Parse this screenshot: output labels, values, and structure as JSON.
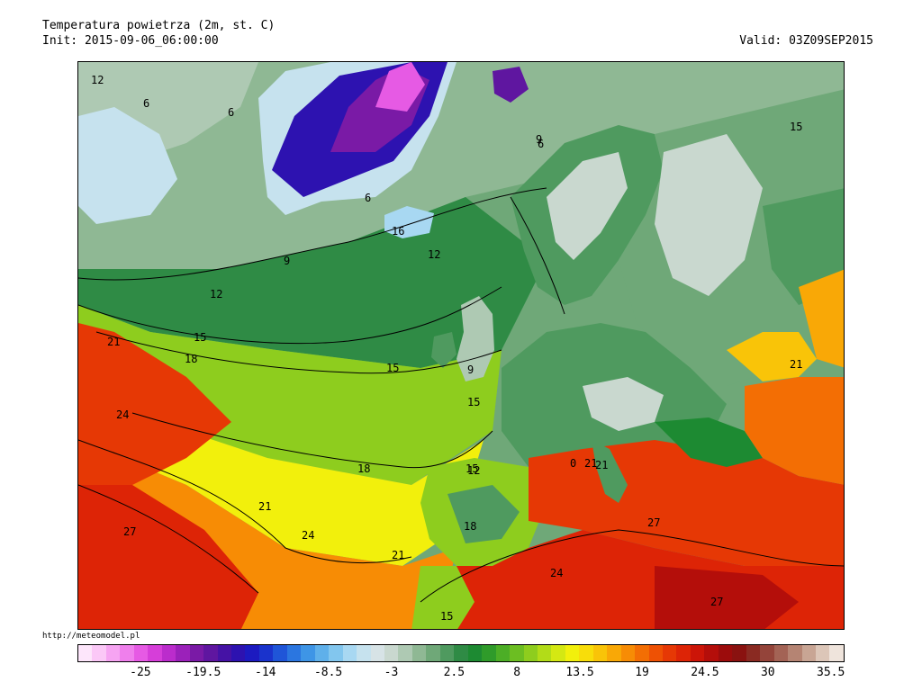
{
  "header": {
    "title": "Temperatura powietrza (2m, st. C)",
    "init": "Init: 2015-09-06_06:00:00",
    "valid": "Valid: 03Z09SEP2015"
  },
  "credit": "http://meteomodel.pl",
  "legend": {
    "colors": [
      "#fde6fb",
      "#fbc8f7",
      "#f6a4f2",
      "#ef7fec",
      "#e65ae4",
      "#d63ed9",
      "#bb2ccc",
      "#9b21ba",
      "#7a1aa6",
      "#5f16a0",
      "#4512a5",
      "#2d12b0",
      "#1c1ac0",
      "#1a33cc",
      "#1f55d8",
      "#2b76e0",
      "#3e95e6",
      "#5fb0ea",
      "#82c6ee",
      "#a8d8f2",
      "#c6e2ee",
      "#d7e3e6",
      "#c9d8cf",
      "#aec9b3",
      "#8fb894",
      "#6fa878",
      "#4f9a5f",
      "#2f8b45",
      "#1d8a32",
      "#2f9b2a",
      "#4cae26",
      "#6cbe22",
      "#8ecd1e",
      "#b2dc18",
      "#d4e813",
      "#f2f00c",
      "#f8dd0a",
      "#f9c408",
      "#f9a806",
      "#f78c05",
      "#f36e04",
      "#ee5104",
      "#e63805",
      "#dd2406",
      "#cc1508",
      "#b40e0a",
      "#9c0c0c",
      "#8a1210",
      "#8a2a22",
      "#94443a",
      "#a36355",
      "#b58473",
      "#c8a594",
      "#dcc6b8",
      "#efe4dc"
    ],
    "ticks": [
      {
        "label": "-25",
        "pos": 0.082
      },
      {
        "label": "-19.5",
        "pos": 0.164
      },
      {
        "label": "-14",
        "pos": 0.245
      },
      {
        "label": "-8.5",
        "pos": 0.327
      },
      {
        "label": "-3",
        "pos": 0.409
      },
      {
        "label": "2.5",
        "pos": 0.491
      },
      {
        "label": "8",
        "pos": 0.573
      },
      {
        "label": "13.5",
        "pos": 0.655
      },
      {
        "label": "19",
        "pos": 0.736
      },
      {
        "label": "24.5",
        "pos": 0.818
      },
      {
        "label": "30",
        "pos": 0.9
      },
      {
        "label": "35.5",
        "pos": 0.982
      }
    ]
  },
  "map": {
    "isotherm_labels": [
      "12",
      "6",
      "6",
      "6",
      "9",
      "6",
      "15",
      "16",
      "12",
      "9",
      "12",
      "15",
      "18",
      "21",
      "24",
      "15",
      "9",
      "15",
      "21",
      "18",
      "21",
      "27",
      "24",
      "21",
      "18",
      "24",
      "27",
      "27",
      "21",
      "15",
      "12",
      "0",
      "21",
      "15"
    ]
  }
}
